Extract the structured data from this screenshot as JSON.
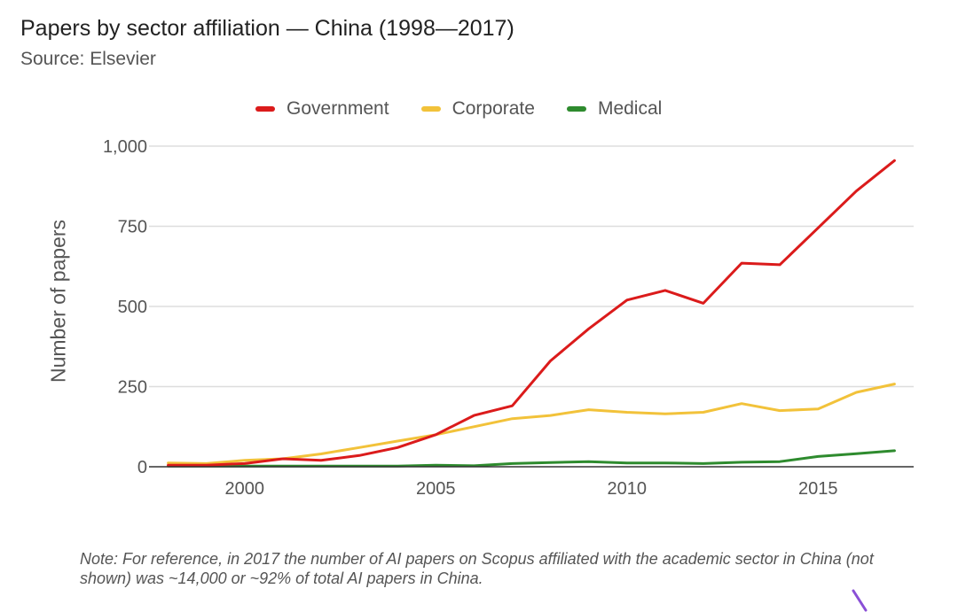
{
  "title": "Papers by sector affiliation — China (1998—2017)",
  "subtitle": "Source: Elsevier",
  "note": "Note: For reference, in 2017 the number of AI papers on Scopus affiliated with the academic sector in China (not shown) was ~14,000 or ~92% of total AI papers in China.",
  "chart_data": {
    "type": "line",
    "title": "Papers by sector affiliation — China (1998—2017)",
    "subtitle": "Source: Elsevier",
    "xlabel": "",
    "ylabel": "Number of papers",
    "x": [
      1998,
      1999,
      2000,
      2001,
      2002,
      2003,
      2004,
      2005,
      2006,
      2007,
      2008,
      2009,
      2010,
      2011,
      2012,
      2013,
      2014,
      2015,
      2016,
      2017
    ],
    "xlim": [
      1997.5,
      2017.5
    ],
    "ylim": [
      0,
      1000
    ],
    "xticks": [
      2000,
      2005,
      2010,
      2015
    ],
    "xtick_labels": [
      "2000",
      "2005",
      "2010",
      "2015"
    ],
    "yticks": [
      0,
      250,
      500,
      750,
      1000
    ],
    "ytick_labels": [
      "0",
      "250",
      "500",
      "750",
      "1,000"
    ],
    "grid": true,
    "legend_position": "top",
    "series": [
      {
        "name": "Government",
        "color": "#db1b1b",
        "values": [
          5,
          5,
          10,
          25,
          20,
          35,
          60,
          100,
          160,
          190,
          330,
          430,
          520,
          550,
          510,
          635,
          630,
          745,
          860,
          955
        ]
      },
      {
        "name": "Corporate",
        "color": "#f2c23a",
        "values": [
          12,
          10,
          20,
          25,
          40,
          60,
          80,
          100,
          125,
          150,
          160,
          178,
          170,
          165,
          170,
          197,
          175,
          180,
          232,
          258
        ]
      },
      {
        "name": "Medical",
        "color": "#2e8b2e",
        "values": [
          2,
          2,
          2,
          2,
          2,
          2,
          2,
          5,
          3,
          10,
          13,
          16,
          12,
          12,
          10,
          14,
          16,
          32,
          41,
          50
        ]
      }
    ]
  }
}
